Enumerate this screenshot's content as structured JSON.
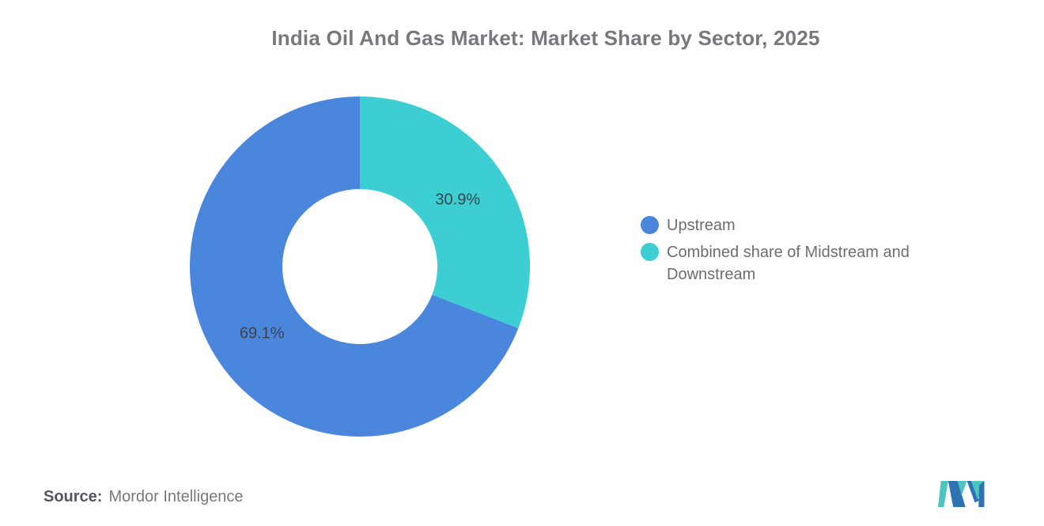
{
  "title": "India Oil And Gas Market: Market Share by Sector, 2025",
  "chart_data": {
    "type": "pie",
    "subtype": "donut",
    "title": "India Oil And Gas Market: Market Share by Sector, 2025",
    "start_angle": "12-oclock",
    "legend_position": "right",
    "segments": [
      {
        "name": "Upstream",
        "value": 69.1,
        "label": "69.1%",
        "color": "#4A87DC"
      },
      {
        "name": "Combined share of Midstream and Downstream",
        "value": 30.9,
        "label": "30.9%",
        "color": "#3DCED4"
      }
    ]
  },
  "legend": {
    "items": [
      {
        "label": "Upstream",
        "color": "#4A87DC"
      },
      {
        "label": "Combined share of Midstream and Downstream",
        "color": "#3DCED4"
      }
    ]
  },
  "source": {
    "prefix": "Source:",
    "text": "Mordor Intelligence"
  },
  "logo": {
    "name": "mordor-intelligence-logo",
    "blue": "#2F72B4",
    "teal": "#4CC4C0"
  }
}
